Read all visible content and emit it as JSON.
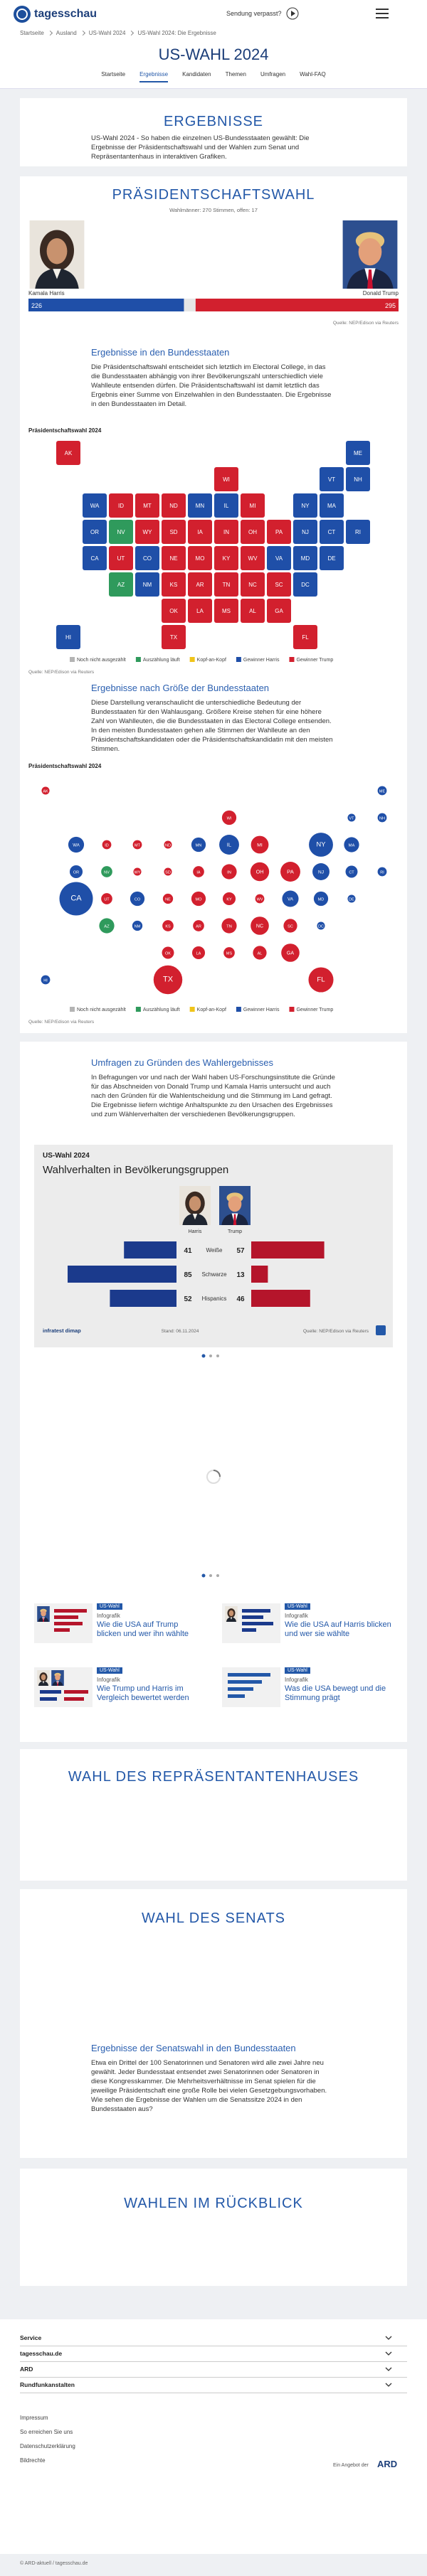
{
  "header": {
    "logo": "tagesschau",
    "missed": "Sendung verpasst?"
  },
  "breadcrumb": [
    "Startseite",
    "Ausland",
    "US-Wahl 2024",
    "US-Wahl 2024: Die Ergebnisse"
  ],
  "page_title": "US-WAHL 2024",
  "nav": [
    "Startseite",
    "Ergebnisse",
    "Kandidaten",
    "Themen",
    "Umfragen",
    "Wahl-FAQ"
  ],
  "intro": {
    "heading": "ERGEBNISSE",
    "text": "US-Wahl 2024 - So haben die einzelnen US-Bundesstaaten gewählt: Die Ergebnisse der Präsidentschaftswahl und der Wahlen zum Senat und Repräsentantenhaus in interaktiven Grafiken."
  },
  "states_section": {
    "heading": "Ergebnisse in den Bundesstaaten",
    "text": "Die Präsidentschaftswahl entscheidet sich letztlich im Electoral College, in das die Bundesstaaten abhängig von ihrer Bevölkerungszahl unterschiedlich viele Wahlleute entsenden dürfen. Die Präsidentschaftswahl ist damit letztlich das Ergebnis einer Summe von Einzelwahlen in den Bundesstaaten. Die Ergebnisse in den Bundesstaaten im Detail."
  },
  "size_section": {
    "heading": "Ergebnisse nach Größe der Bundesstaaten",
    "text": "Diese Darstellung veranschaulicht die unterschiedliche Bedeutung der Bundesstaaten für den Wahlausgang. Größere Kreise stehen für eine höhere Zahl von Wahlleuten, die die Bundesstaaten in das Electoral College entsenden. In den meisten Bundesstaaten gehen alle Stimmen der Wahlleute an den Präsidentschaftskandidaten oder die Präsidentschaftskandidatin mit den meisten Stimmen."
  },
  "polls_section": {
    "heading": "Umfragen zu Gründen des Wahlergebnisses",
    "text": "In Befragungen vor und nach der Wahl haben US-Forschungsinstitute die Gründe für das Abschneiden von Donald Trump und Kamala Harris untersucht und auch nach den Gründen für die Wahlentscheidung und die Stimmung im Land gefragt. Die Ergebnisse liefern wichtige Anhaltspunkte zu den Ursachen des Ergebnisses und zum Wählerverhalten der verschiedenen Bevölkerungsgruppen."
  },
  "teasers": [
    {
      "tag": "US-Wahl",
      "kicker": "Infografik",
      "title": "Wie die USA auf Trump blicken und wer ihn wählte"
    },
    {
      "tag": "US-Wahl",
      "kicker": "Infografik",
      "title": "Wie die USA auf Harris blicken und wer sie wählte"
    },
    {
      "tag": "US-Wahl",
      "kicker": "Infografik",
      "title": "Wie Trump und Harris im Vergleich bewertet werden"
    },
    {
      "tag": "US-Wahl",
      "kicker": "Infografik",
      "title": "Was die USA bewegt und die Stimmung prägt"
    }
  ],
  "house": {
    "heading": "WAHL DES REPRÄSENTANTENHAUSES"
  },
  "senate": {
    "heading": "WAHL DES SENATS",
    "sub_heading": "Ergebnisse der Senatswahl in den Bundesstaaten",
    "text": "Etwa ein Drittel der 100 Senatorinnen und Senatoren wird alle zwei Jahre neu gewählt. Jeder Bundesstaat entsendet zwei Senatorinnen oder Senatoren in diese Kongresskammer. Die Mehrheitsverhältnisse im Senat spielen für die jeweilige Präsidentschaft eine große Rolle bei vielen Gesetzgebungsvorhaben. Wie sehen die Ergebnisse der Wahlen um die Senatssitze 2024 in den Bundesstaaten aus?"
  },
  "review": {
    "heading": "WAHLEN IM RÜCKBLICK"
  },
  "footer": {
    "sections": [
      "Service",
      "tagesschau.de",
      "ARD",
      "Rundfunkanstalten"
    ],
    "links": [
      "Impressum",
      "So erreichen Sie uns",
      "Datenschutzerklärung",
      "Bildrechte"
    ],
    "ard_label": "Ein Angebot der",
    "ard": "ARD",
    "copyright": "© ARD-aktuell / tagesschau.de"
  },
  "chart_data": [
    {
      "type": "bar",
      "title": "PRÄSIDENTSCHAFTSWAHL",
      "subtitle": "Wahlmänner: 270 Stimmen, offen: 17",
      "series": [
        {
          "name": "Kamala Harris",
          "color": "#1f4fa8",
          "values": [
            226
          ]
        },
        {
          "name": "Donald Trump",
          "color": "#d2202e",
          "values": [
            295
          ]
        }
      ],
      "xlim": [
        0,
        538
      ],
      "source": "Quelle: NEP/Edison via Reuters"
    },
    {
      "type": "map",
      "title": "Präsidentschaftswahl 2024",
      "categories": [
        "AK",
        "AL",
        "AR",
        "AZ",
        "CA",
        "CO",
        "CT",
        "DC",
        "DE",
        "FL",
        "GA",
        "HI",
        "IA",
        "ID",
        "IL",
        "IN",
        "KS",
        "KY",
        "LA",
        "MA",
        "MD",
        "ME",
        "MI",
        "MN",
        "MO",
        "MS",
        "MT",
        "NC",
        "ND",
        "NE",
        "NH",
        "NJ",
        "NM",
        "NV",
        "NY",
        "OH",
        "OK",
        "OR",
        "PA",
        "RI",
        "SC",
        "SD",
        "TN",
        "TX",
        "UT",
        "VA",
        "VT",
        "WA",
        "WI",
        "WV",
        "WY"
      ],
      "colors": [
        "#d2202e",
        "#d2202e",
        "#d2202e",
        "#2f9a5c",
        "#1f4fa8",
        "#1f4fa8",
        "#1f4fa8",
        "#1f4fa8",
        "#1f4fa8",
        "#d2202e",
        "#d2202e",
        "#1f4fa8",
        "#d2202e",
        "#d2202e",
        "#1f4fa8",
        "#d2202e",
        "#d2202e",
        "#d2202e",
        "#d2202e",
        "#1f4fa8",
        "#1f4fa8",
        "#1f4fa8",
        "#d2202e",
        "#1f4fa8",
        "#d2202e",
        "#d2202e",
        "#d2202e",
        "#d2202e",
        "#d2202e",
        "#d2202e",
        "#1f4fa8",
        "#1f4fa8",
        "#1f4fa8",
        "#2f9a5c",
        "#1f4fa8",
        "#d2202e",
        "#d2202e",
        "#1f4fa8",
        "#d2202e",
        "#1f4fa8",
        "#d2202e",
        "#d2202e",
        "#d2202e",
        "#d2202e",
        "#d2202e",
        "#1f4fa8",
        "#1f4fa8",
        "#1f4fa8",
        "#d2202e",
        "#d2202e",
        "#d2202e"
      ],
      "legend": [
        {
          "label": "Noch nicht ausgezählt",
          "color": "#b4b4b4"
        },
        {
          "label": "Auszählung läuft",
          "color": "#2f9a5c"
        },
        {
          "label": "Kopf-an-Kopf",
          "color": "#f0c419"
        },
        {
          "label": "Gewinner Harris",
          "color": "#1f4fa8"
        },
        {
          "label": "Gewinner Trump",
          "color": "#d2202e"
        }
      ],
      "source": "Quelle: NEP/Edison via Reuters"
    },
    {
      "type": "bubble",
      "title": "Präsidentschaftswahl 2024",
      "categories": [
        "AK",
        "AL",
        "AR",
        "AZ",
        "CA",
        "CO",
        "CT",
        "DC",
        "DE",
        "FL",
        "GA",
        "HI",
        "IA",
        "ID",
        "IL",
        "IN",
        "KS",
        "KY",
        "LA",
        "MA",
        "MD",
        "ME",
        "MI",
        "MN",
        "MO",
        "MS",
        "MT",
        "NC",
        "ND",
        "NE",
        "NH",
        "NJ",
        "NM",
        "NV",
        "NY",
        "OH",
        "OK",
        "OR",
        "PA",
        "RI",
        "SC",
        "SD",
        "TN",
        "TX",
        "UT",
        "VA",
        "VT",
        "WA",
        "WI",
        "WV",
        "WY"
      ],
      "values": [
        3,
        9,
        6,
        11,
        54,
        10,
        7,
        3,
        3,
        30,
        16,
        4,
        6,
        4,
        19,
        11,
        6,
        8,
        8,
        11,
        10,
        4,
        15,
        10,
        10,
        6,
        4,
        16,
        3,
        5,
        4,
        14,
        5,
        6,
        28,
        17,
        7,
        8,
        19,
        4,
        9,
        3,
        11,
        40,
        6,
        13,
        3,
        12,
        10,
        4,
        3
      ],
      "colors": [
        "#d2202e",
        "#d2202e",
        "#d2202e",
        "#2f9a5c",
        "#1f4fa8",
        "#1f4fa8",
        "#1f4fa8",
        "#1f4fa8",
        "#1f4fa8",
        "#d2202e",
        "#d2202e",
        "#1f4fa8",
        "#d2202e",
        "#d2202e",
        "#1f4fa8",
        "#d2202e",
        "#d2202e",
        "#d2202e",
        "#d2202e",
        "#1f4fa8",
        "#1f4fa8",
        "#1f4fa8",
        "#d2202e",
        "#1f4fa8",
        "#d2202e",
        "#d2202e",
        "#d2202e",
        "#d2202e",
        "#d2202e",
        "#d2202e",
        "#1f4fa8",
        "#1f4fa8",
        "#1f4fa8",
        "#2f9a5c",
        "#1f4fa8",
        "#d2202e",
        "#d2202e",
        "#1f4fa8",
        "#d2202e",
        "#1f4fa8",
        "#d2202e",
        "#d2202e",
        "#d2202e",
        "#d2202e",
        "#d2202e",
        "#1f4fa8",
        "#1f4fa8",
        "#1f4fa8",
        "#d2202e",
        "#d2202e",
        "#d2202e"
      ],
      "legend": [
        {
          "label": "Noch nicht ausgezählt",
          "color": "#b4b4b4"
        },
        {
          "label": "Auszählung läuft",
          "color": "#2f9a5c"
        },
        {
          "label": "Kopf-an-Kopf",
          "color": "#f0c419"
        },
        {
          "label": "Gewinner Harris",
          "color": "#1f4fa8"
        },
        {
          "label": "Gewinner Trump",
          "color": "#d2202e"
        }
      ],
      "source": "Quelle: NEP/Edison via Reuters"
    },
    {
      "type": "diverging_bar",
      "title": "US-Wahl 2024",
      "subtitle": "Wahlverhalten in Bevölkerungsgruppen",
      "categories": [
        "Weiße",
        "Schwarze",
        "Hispanics"
      ],
      "series": [
        {
          "name": "Harris",
          "color": "#1b3a8c",
          "values": [
            41,
            85,
            52
          ]
        },
        {
          "name": "Trump",
          "color": "#b5152b",
          "values": [
            57,
            13,
            46
          ]
        }
      ],
      "xlim": [
        0,
        100
      ],
      "brand": "infratest dimap",
      "note": "Stand: 06.11.2024",
      "source": "Quelle: NEP/Edison via Reuters"
    }
  ]
}
